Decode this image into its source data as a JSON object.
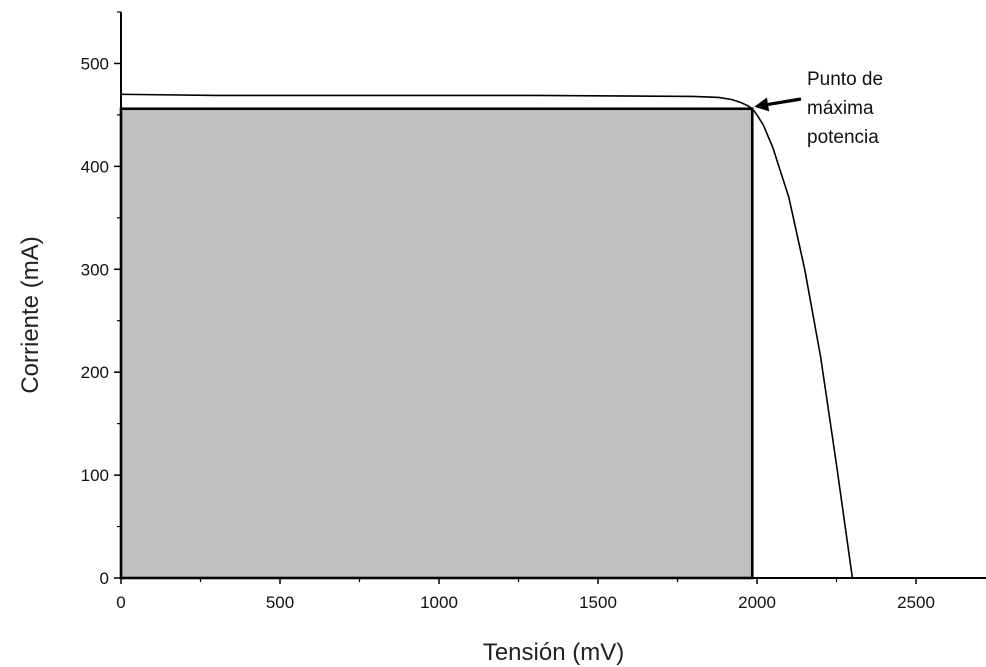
{
  "chart_data": {
    "type": "line",
    "title": "",
    "xlabel": "Tensión (mV)",
    "ylabel": "Corriente (mA)",
    "xlim": [
      0,
      2720
    ],
    "ylim": [
      0,
      550
    ],
    "xticks": [
      0,
      500,
      1000,
      1500,
      2000,
      2500
    ],
    "xtick_labels": [
      "0",
      "500",
      "1000",
      "1500",
      "2000",
      "2500"
    ],
    "yticks": [
      0,
      100,
      200,
      300,
      400,
      500
    ],
    "ytick_labels": [
      "0",
      "100",
      "200",
      "300",
      "400",
      "500"
    ],
    "grid": false,
    "legend": "none",
    "series": [
      {
        "x": [
          0,
          300,
          800,
          1300,
          1800,
          1880,
          1920,
          1950,
          1970,
          1985,
          2000,
          2020,
          2050,
          2100,
          2150,
          2200,
          2250,
          2300
        ],
        "y": [
          470,
          469,
          469,
          469,
          468,
          467,
          465,
          462,
          459,
          456,
          450,
          440,
          418,
          370,
          300,
          215,
          110,
          0
        ],
        "color": "#000000"
      }
    ],
    "max_power_point": {
      "x": 1985,
      "y": 456
    },
    "shaded_region": {
      "x": [
        0,
        1985
      ],
      "y": [
        0,
        456
      ],
      "color": "#c0c0c0"
    },
    "annotations": [
      {
        "lines": [
          "Punto de",
          "máxima",
          "potencia"
        ],
        "target": {
          "x": 1985,
          "y": 456
        }
      }
    ]
  }
}
